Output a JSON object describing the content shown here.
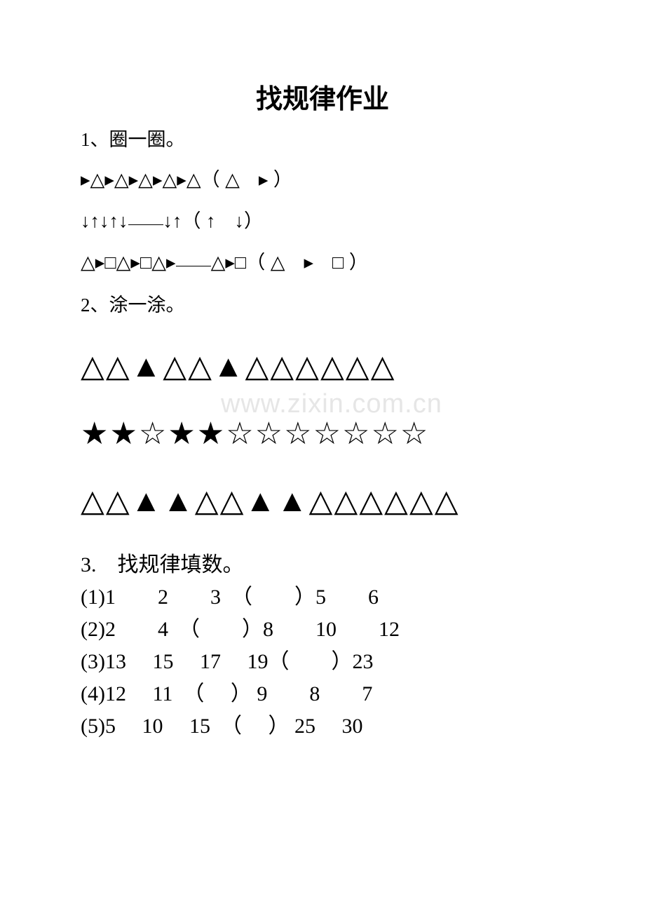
{
  "title": "找规律作业",
  "q1": {
    "label": "1、圈一圈。",
    "line1": "▸△▸△▸△▸△▸△（ △　▸ ）",
    "line2_pre": "↓↑↓↑↓",
    "line2_post": "↓↑（ ↑　↓）",
    "line3_pre": "△▸□△▸□△▸",
    "line3_post": "△▸□（ △　▸　□ ）"
  },
  "q2": {
    "label": "2、涂一涂。",
    "row1": "△△▲△△▲△△△△△△",
    "row2": "★★☆★★☆☆☆☆☆☆☆",
    "row3": "△△▲▲△△▲▲△△△△△△"
  },
  "q3": {
    "label": "3.　找规律填数。",
    "line1": "(1)1　　2　　3　（　　）5　　6",
    "line2": "(2)2　　4　（　　）8　　10　　12",
    "line3": "(3)13　 15　 17　 19（　　）23",
    "line4": "(4)12　 11　（　 ） 9　　8　　7",
    "line5": "(5)5　 10　 15　（　 ） 25　 30"
  },
  "watermark": "www.zixin.com.cn",
  "colors": {
    "background": "#ffffff",
    "text": "#000000",
    "watermark": "#e6e6e6"
  }
}
